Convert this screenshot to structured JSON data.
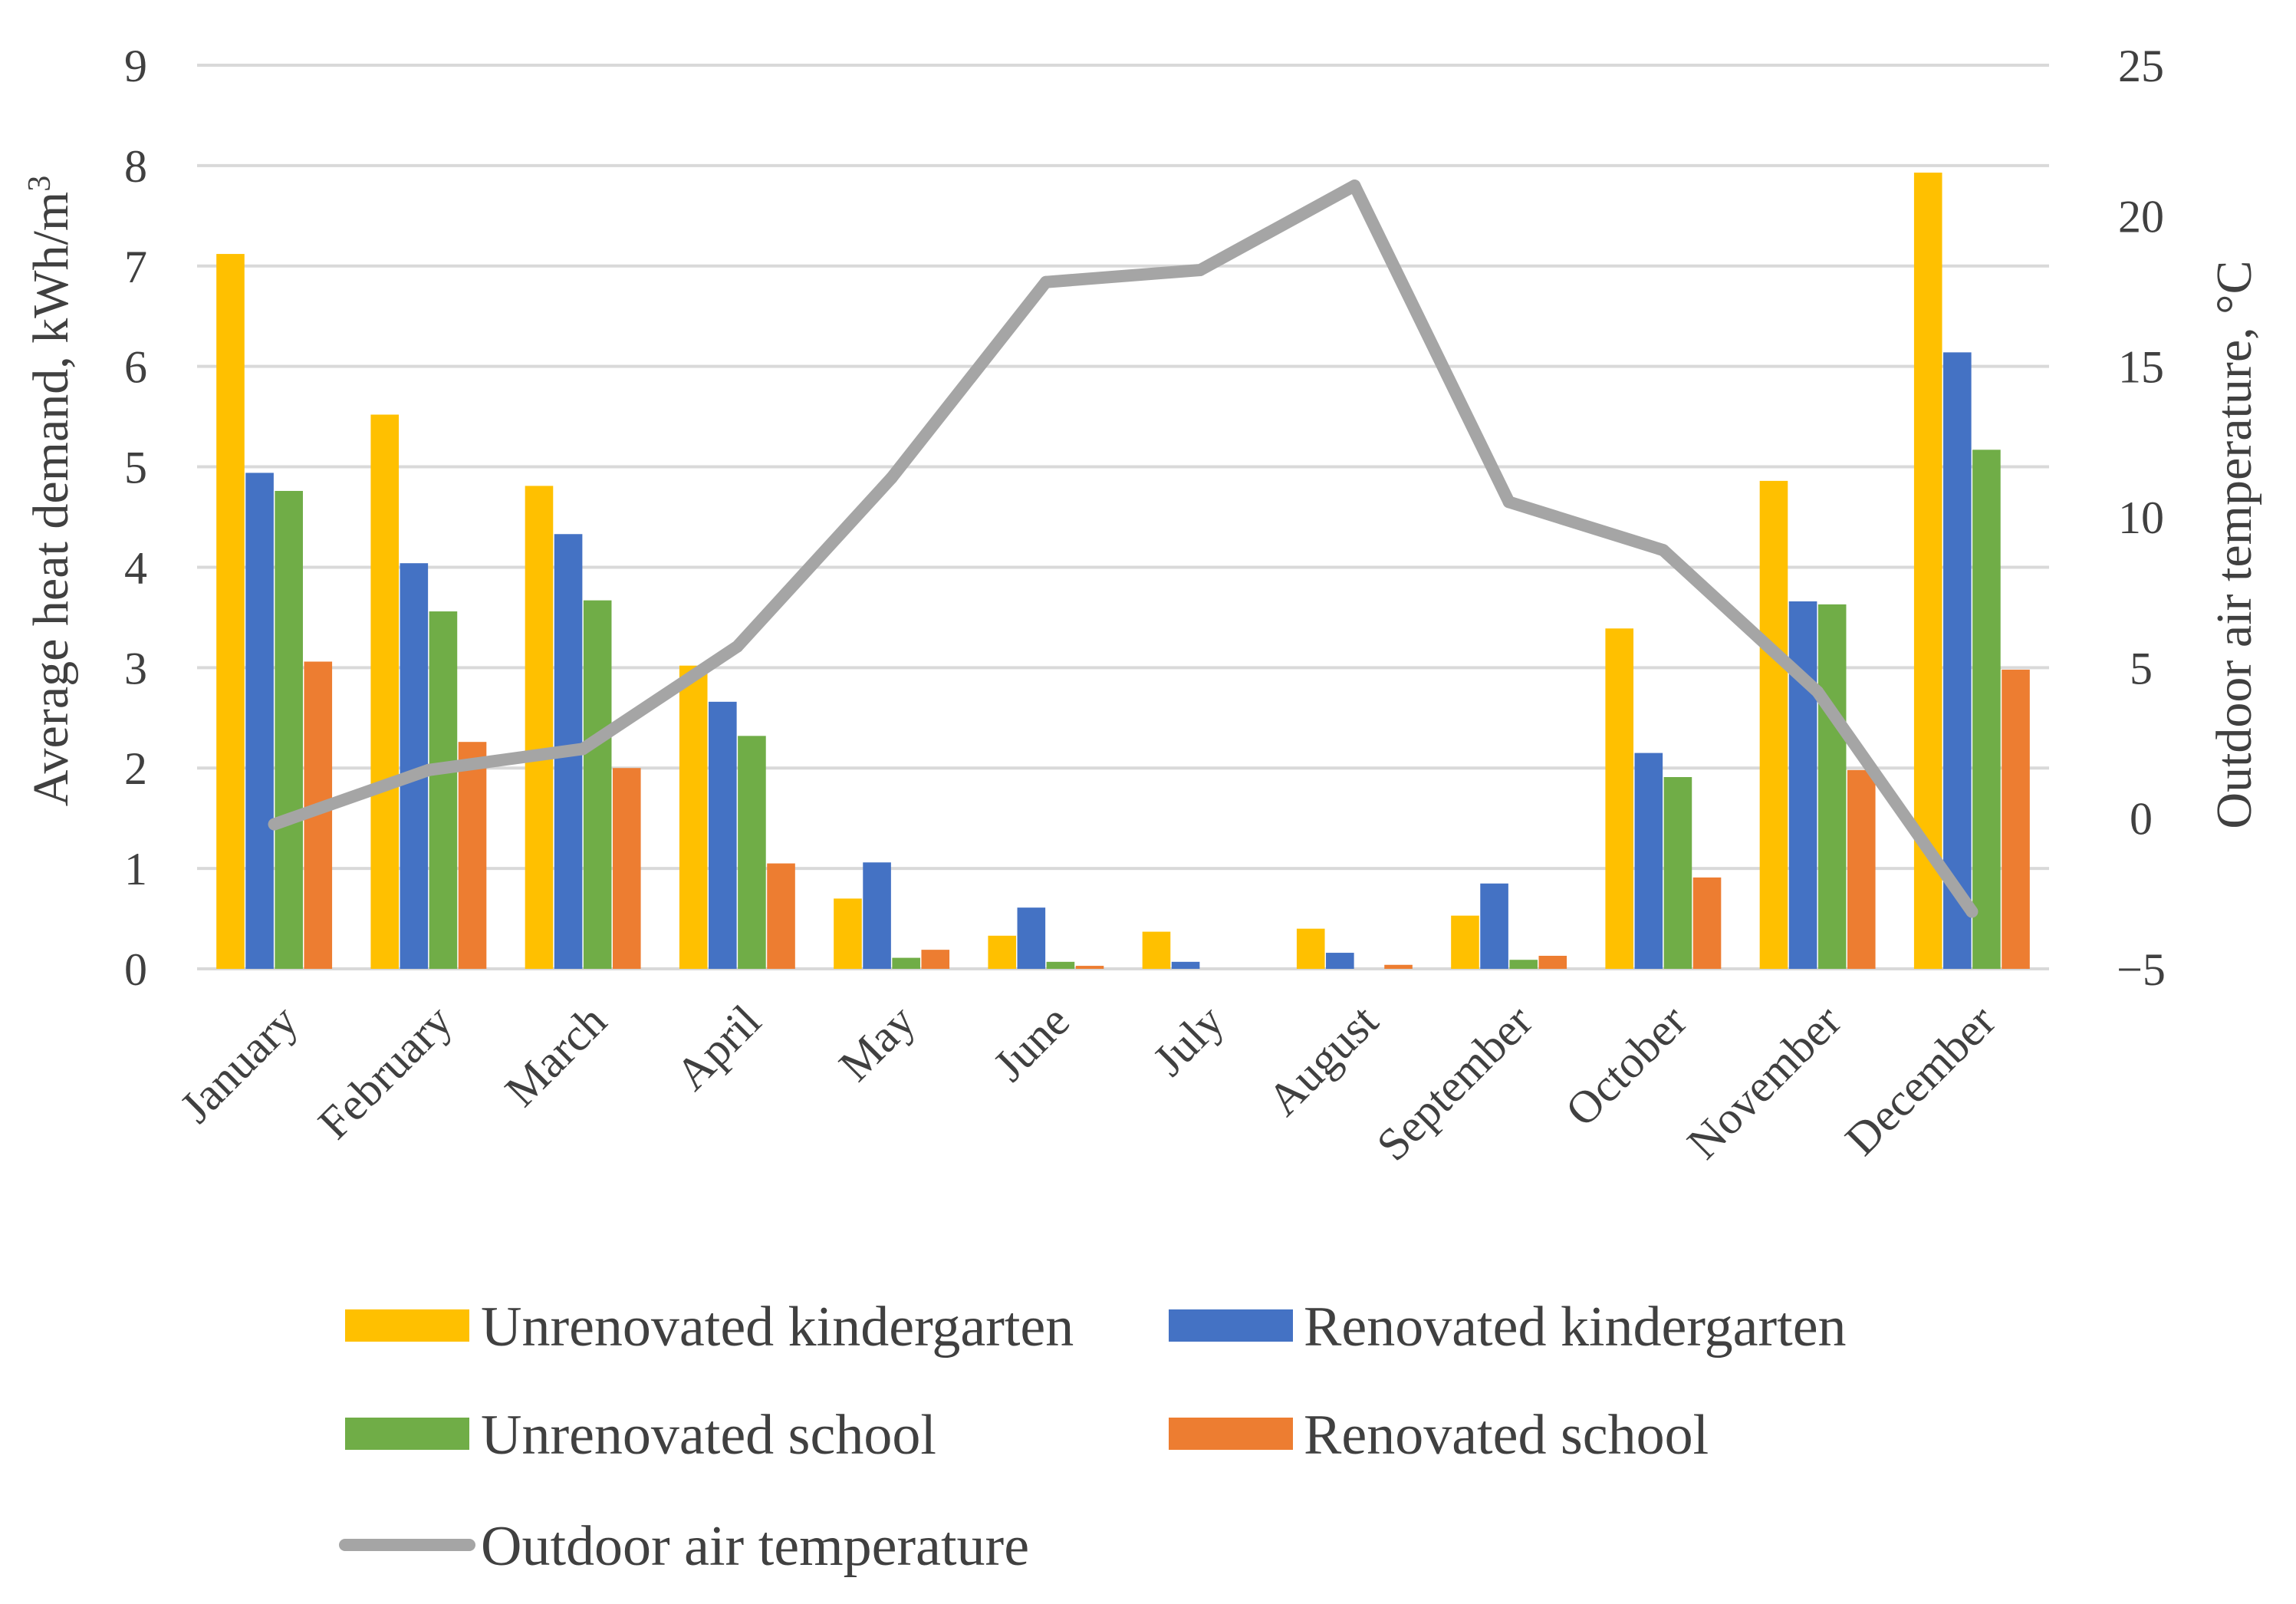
{
  "chart_data": {
    "type": "bar",
    "categories": [
      "January",
      "February",
      "March",
      "April",
      "May",
      "June",
      "July",
      "August",
      "September",
      "October",
      "November",
      "December"
    ],
    "series": [
      {
        "name": "Unrenovated kindergarten",
        "color": "#FFC000",
        "values": [
          7.12,
          5.52,
          4.81,
          3.02,
          0.7,
          0.33,
          0.37,
          0.4,
          0.53,
          3.39,
          4.86,
          7.93
        ]
      },
      {
        "name": "Renovated kindergarten",
        "color": "#4472C4",
        "values": [
          4.94,
          4.04,
          4.33,
          2.66,
          1.06,
          0.61,
          0.07,
          0.16,
          0.85,
          2.15,
          3.66,
          6.14
        ]
      },
      {
        "name": "Unrenovated school",
        "color": "#70AD47",
        "values": [
          4.76,
          3.56,
          3.67,
          2.32,
          0.11,
          0.07,
          0.0,
          0.0,
          0.09,
          1.91,
          3.63,
          5.17
        ]
      },
      {
        "name": "Renovated school",
        "color": "#ED7D31",
        "values": [
          3.06,
          2.26,
          2.0,
          1.05,
          0.19,
          0.03,
          0.0,
          0.04,
          0.13,
          0.91,
          1.98,
          2.98
        ]
      }
    ],
    "line_series": {
      "name": "Outdoor air temperature",
      "color": "#A5A5A5",
      "axis": "right",
      "values": [
        -0.2,
        1.6,
        2.3,
        5.7,
        11.3,
        17.8,
        18.2,
        21.0,
        10.5,
        8.9,
        4.2,
        -3.1
      ]
    },
    "ylabel": "Average heat demand, kWh/m",
    "ylabel_sup": "3",
    "ylim": [
      0,
      9
    ],
    "yticks": [
      "0",
      "1",
      "2",
      "3",
      "4",
      "5",
      "6",
      "7",
      "8",
      "9"
    ],
    "y2label": "Outdoor air temperature, °C",
    "y2lim": [
      -5,
      25
    ],
    "y2ticks": [
      "−5",
      "0",
      "5",
      "10",
      "15",
      "20",
      "25"
    ],
    "grid": true,
    "legend_position": "bottom"
  }
}
